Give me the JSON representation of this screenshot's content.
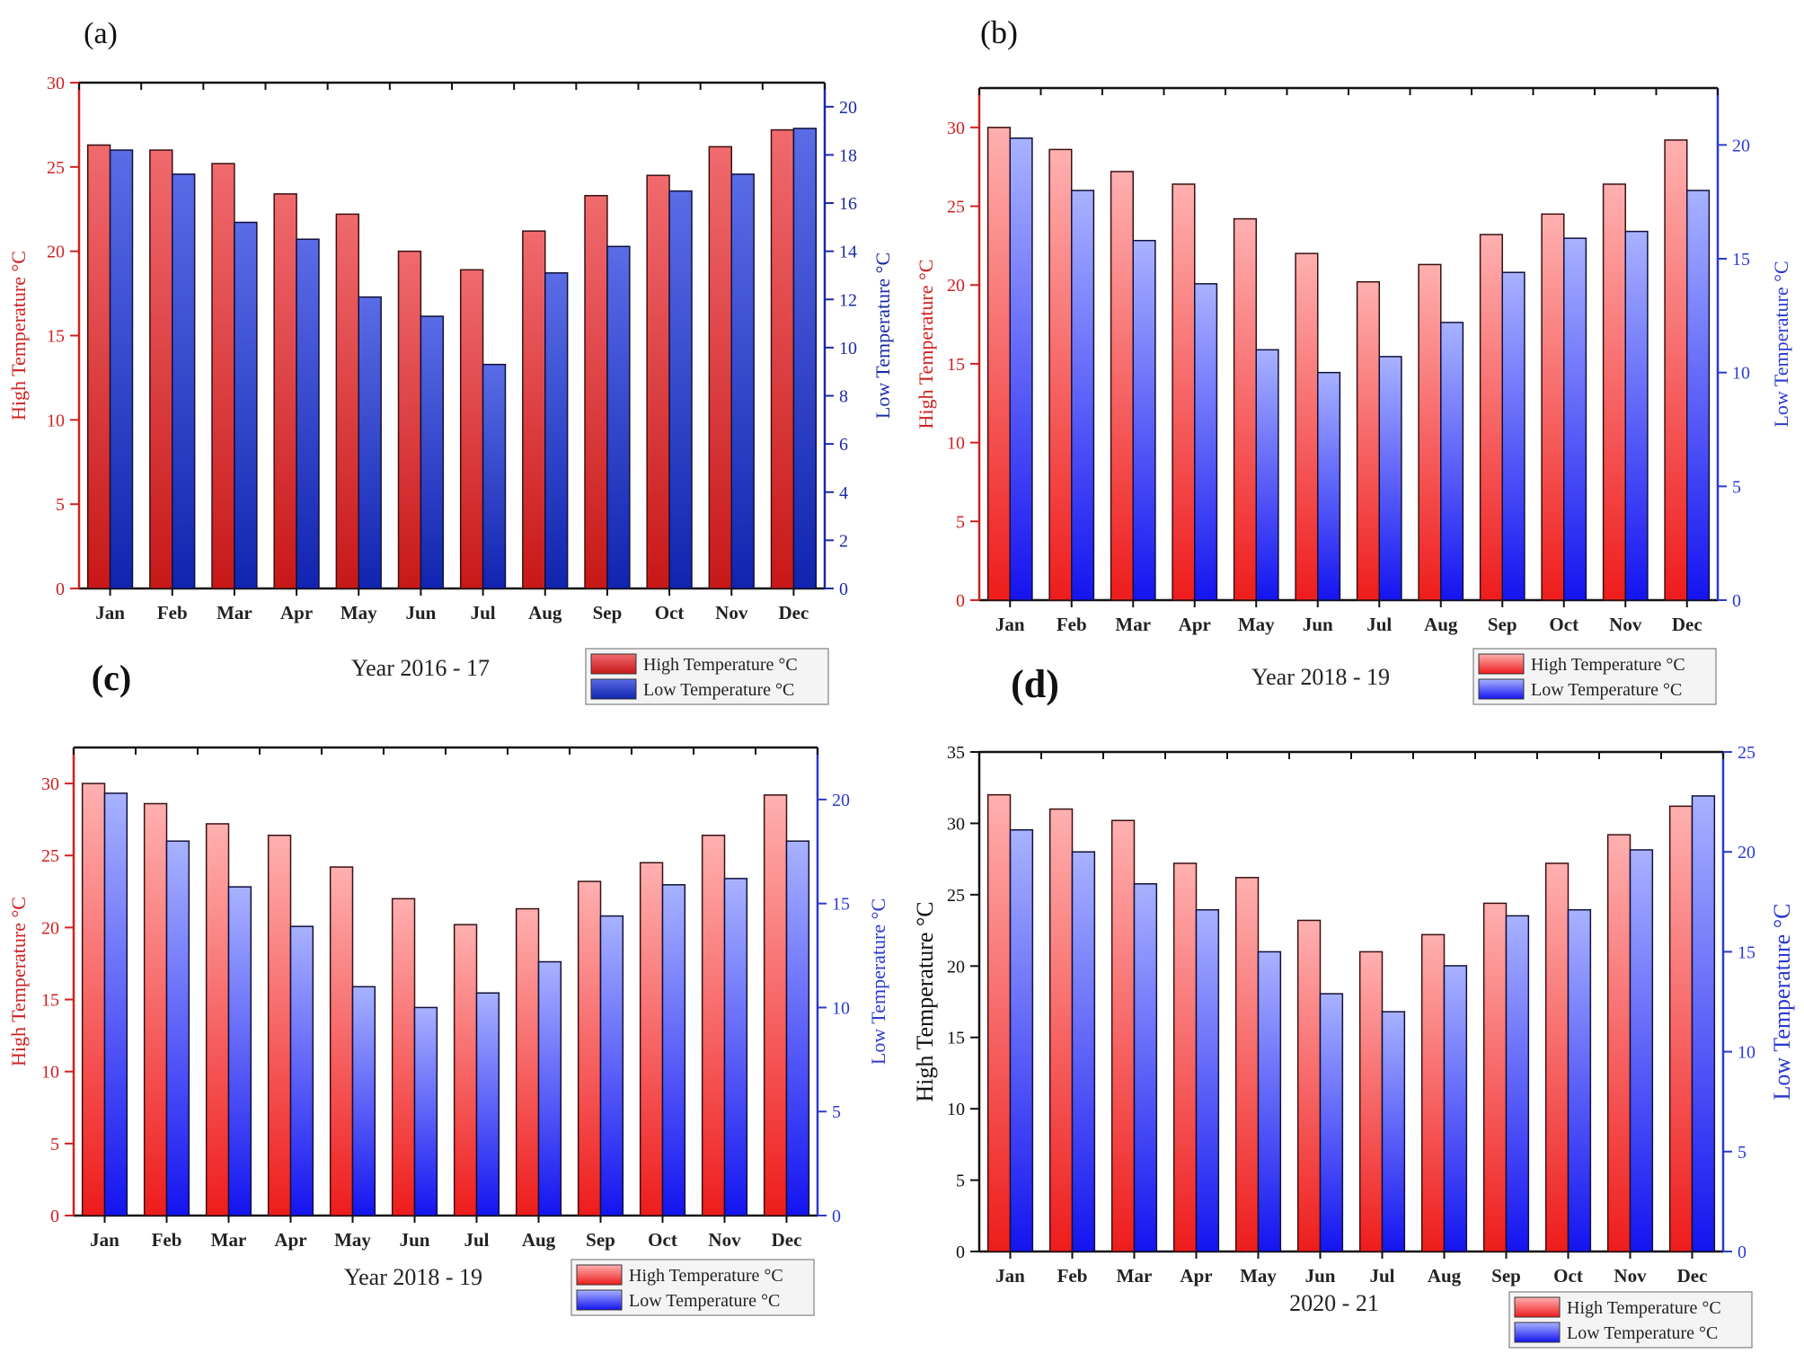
{
  "chart_data": [
    {
      "type": "bar",
      "panel_label": "(a)",
      "title": "Year 2016 - 17",
      "categories": [
        "Jan",
        "Feb",
        "Mar",
        "Apr",
        "May",
        "Jun",
        "Jul",
        "Aug",
        "Sep",
        "Oct",
        "Nov",
        "Dec"
      ],
      "series": [
        {
          "name": "High Temperature °C",
          "axis": "left",
          "values": [
            26.3,
            26.0,
            25.2,
            23.4,
            22.2,
            20.0,
            18.9,
            21.2,
            23.3,
            24.5,
            26.2,
            27.2
          ]
        },
        {
          "name": "Low Temperature °C",
          "axis": "right",
          "values": [
            18.2,
            17.2,
            15.2,
            14.5,
            12.1,
            11.3,
            9.3,
            13.1,
            14.2,
            16.5,
            17.2,
            19.1
          ]
        }
      ],
      "ylabel": "High Temperature °C",
      "y2label": "Low Temperature °C",
      "ylim": [
        0,
        30
      ],
      "yticks": [
        0,
        5,
        10,
        15,
        20,
        25,
        30
      ],
      "y2lim": [
        0,
        21
      ],
      "y2ticks": [
        0,
        2,
        4,
        6,
        8,
        10,
        12,
        14,
        16,
        18,
        20
      ],
      "legend": [
        "High Temperature °C",
        "Low Temperature °C"
      ],
      "colors": {
        "high": "#e8454a",
        "low": "#3a4fd6",
        "leftAxis": "#d02020",
        "rightAxis": "#1a2aa8"
      }
    },
    {
      "type": "bar",
      "panel_label": "(b)",
      "title": "Year 2018 - 19",
      "categories": [
        "Jan",
        "Feb",
        "Mar",
        "Apr",
        "May",
        "Jun",
        "Jul",
        "Aug",
        "Sep",
        "Oct",
        "Nov",
        "Dec"
      ],
      "series": [
        {
          "name": "High Temperature °C",
          "axis": "left",
          "values": [
            30.0,
            28.6,
            27.2,
            26.4,
            24.2,
            22.0,
            20.2,
            21.3,
            23.2,
            24.5,
            26.4,
            29.2
          ]
        },
        {
          "name": "Low Temperature °C",
          "axis": "right",
          "values": [
            20.3,
            18.0,
            15.8,
            13.9,
            11.0,
            10.0,
            10.7,
            12.2,
            14.4,
            15.9,
            16.2,
            18.0
          ]
        }
      ],
      "ylabel": "High Temperature °C",
      "y2label": "Low Temperature °C",
      "ylim": [
        0,
        32.5
      ],
      "yticks": [
        0,
        5,
        10,
        15,
        20,
        25,
        30
      ],
      "y2lim": [
        0,
        22.5
      ],
      "y2ticks": [
        0,
        5,
        10,
        15,
        20
      ],
      "legend": [
        "High Temperature °C",
        "Low Temperature °C"
      ],
      "colors": {
        "high": "#f07a7d",
        "low": "#6d7cf0",
        "leftAxis": "#d02020",
        "rightAxis": "#2a3ad0"
      }
    },
    {
      "type": "bar",
      "panel_label": "(c)",
      "title": "Year 2018 - 19",
      "categories": [
        "Jan",
        "Feb",
        "Mar",
        "Apr",
        "May",
        "Jun",
        "Jul",
        "Aug",
        "Sep",
        "Oct",
        "Nov",
        "Dec"
      ],
      "series": [
        {
          "name": "High Temperature °C",
          "axis": "left",
          "values": [
            30.0,
            28.6,
            27.2,
            26.4,
            24.2,
            22.0,
            20.2,
            21.3,
            23.2,
            24.5,
            26.4,
            29.2
          ]
        },
        {
          "name": "Low Temperature °C",
          "axis": "right",
          "values": [
            20.3,
            18.0,
            15.8,
            13.9,
            11.0,
            10.0,
            10.7,
            12.2,
            14.4,
            15.9,
            16.2,
            18.0
          ]
        }
      ],
      "ylabel": "High Temperature °C",
      "y2label": "Low Temperature °C",
      "ylim": [
        0,
        32.5
      ],
      "yticks": [
        0,
        5,
        10,
        15,
        20,
        25,
        30
      ],
      "y2lim": [
        0,
        22.5
      ],
      "y2ticks": [
        0,
        5,
        10,
        15,
        20
      ],
      "legend": [
        "High Temperature °C",
        "Low Temperature °C"
      ],
      "colors": {
        "high": "#f07a7d",
        "low": "#6d7cf0",
        "leftAxis": "#d02020",
        "rightAxis": "#2a3ad0"
      }
    },
    {
      "type": "bar",
      "panel_label": "(d)",
      "title": "2020 - 21",
      "categories": [
        "Jan",
        "Feb",
        "Mar",
        "Apr",
        "May",
        "Jun",
        "Jul",
        "Aug",
        "Sep",
        "Oct",
        "Nov",
        "Dec"
      ],
      "series": [
        {
          "name": "High Temperature °C",
          "axis": "left",
          "values": [
            32.0,
            31.0,
            30.2,
            27.2,
            26.2,
            23.2,
            21.0,
            22.2,
            24.4,
            27.2,
            29.2,
            31.2
          ]
        },
        {
          "name": "Low Temperature °C",
          "axis": "right",
          "values": [
            21.1,
            20.0,
            18.4,
            17.1,
            15.0,
            12.9,
            12.0,
            14.3,
            16.8,
            17.1,
            20.1,
            22.8
          ]
        }
      ],
      "ylabel": "High Temperature °C",
      "y2label": "Low Temperature °C",
      "ylim": [
        0,
        35
      ],
      "yticks": [
        0,
        5,
        10,
        15,
        20,
        25,
        30,
        35
      ],
      "y2lim": [
        0,
        25
      ],
      "y2ticks": [
        0,
        5,
        10,
        15,
        20,
        25
      ],
      "legend": [
        "High Temperature °C",
        "Low Temperature °C"
      ],
      "colors": {
        "high": "#f07a7d",
        "low": "#6d7cf0",
        "leftAxis": "#111111",
        "rightAxis": "#2a3ad0"
      }
    }
  ]
}
